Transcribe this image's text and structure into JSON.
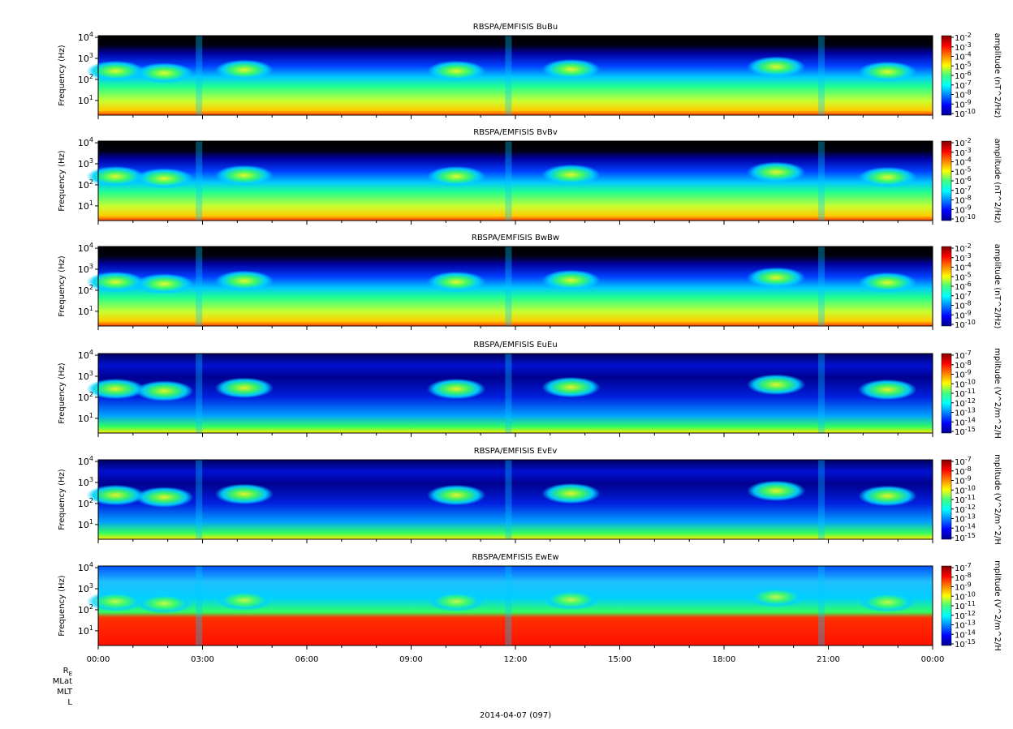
{
  "figure": {
    "date_label": "2014-04-07 (097)",
    "footer_rows": [
      "R_E",
      "MLat",
      "MLT",
      "L"
    ]
  },
  "chart_data": [
    {
      "type": "heatmap",
      "title": "RBSPA/EMFISIS  BuBu",
      "ylabel": "Frequency (Hz)",
      "yscale": "log",
      "ylim": [
        2,
        12000
      ],
      "yticks": [
        {
          "exp": "1",
          "value": 10
        },
        {
          "exp": "2",
          "value": 100
        },
        {
          "exp": "3",
          "value": 1000
        },
        {
          "exp": "4",
          "value": 10000
        }
      ],
      "xlim_hours": [
        0,
        24
      ],
      "colorbar": {
        "label": "amplitude (nT^2/Hz)",
        "exps": [
          "-2",
          "-3",
          "-4",
          "-5",
          "-6",
          "-7",
          "-8",
          "-9",
          "-10"
        ]
      },
      "xticks": []
    },
    {
      "type": "heatmap",
      "title": "RBSPA/EMFISIS  BvBv",
      "ylabel": "Frequency (Hz)",
      "yscale": "log",
      "ylim": [
        2,
        12000
      ],
      "yticks": [
        {
          "exp": "1",
          "value": 10
        },
        {
          "exp": "2",
          "value": 100
        },
        {
          "exp": "3",
          "value": 1000
        },
        {
          "exp": "4",
          "value": 10000
        }
      ],
      "xlim_hours": [
        0,
        24
      ],
      "colorbar": {
        "label": "amplitude (nT^2/Hz)",
        "exps": [
          "-2",
          "-3",
          "-4",
          "-5",
          "-6",
          "-7",
          "-8",
          "-9",
          "-10"
        ]
      },
      "xticks": []
    },
    {
      "type": "heatmap",
      "title": "RBSPA/EMFISIS  BwBw",
      "ylabel": "Frequency (Hz)",
      "yscale": "log",
      "ylim": [
        2,
        12000
      ],
      "yticks": [
        {
          "exp": "1",
          "value": 10
        },
        {
          "exp": "2",
          "value": 100
        },
        {
          "exp": "3",
          "value": 1000
        },
        {
          "exp": "4",
          "value": 10000
        }
      ],
      "xlim_hours": [
        0,
        24
      ],
      "colorbar": {
        "label": "amplitude (nT^2/Hz)",
        "exps": [
          "-2",
          "-3",
          "-4",
          "-5",
          "-6",
          "-7",
          "-8",
          "-9",
          "-10"
        ]
      },
      "xticks": []
    },
    {
      "type": "heatmap",
      "title": "RBSPA/EMFISIS  EuEu",
      "ylabel": "Frequency (Hz)",
      "yscale": "log",
      "ylim": [
        2,
        12000
      ],
      "yticks": [
        {
          "exp": "1",
          "value": 10
        },
        {
          "exp": "2",
          "value": 100
        },
        {
          "exp": "3",
          "value": 1000
        },
        {
          "exp": "4",
          "value": 10000
        }
      ],
      "xlim_hours": [
        0,
        24
      ],
      "colorbar": {
        "label": "mplitude (V^2/m^2/H",
        "exps": [
          "-7",
          "-8",
          "-9",
          "-10",
          "-11",
          "-12",
          "-13",
          "-14",
          "-15"
        ]
      },
      "xticks": []
    },
    {
      "type": "heatmap",
      "title": "RBSPA/EMFISIS  EvEv",
      "ylabel": "Frequency (Hz)",
      "yscale": "log",
      "ylim": [
        2,
        12000
      ],
      "yticks": [
        {
          "exp": "1",
          "value": 10
        },
        {
          "exp": "2",
          "value": 100
        },
        {
          "exp": "3",
          "value": 1000
        },
        {
          "exp": "4",
          "value": 10000
        }
      ],
      "xlim_hours": [
        0,
        24
      ],
      "colorbar": {
        "label": "mplitude (V^2/m^2/H",
        "exps": [
          "-7",
          "-8",
          "-9",
          "-10",
          "-11",
          "-12",
          "-13",
          "-14",
          "-15"
        ]
      },
      "xticks": []
    },
    {
      "type": "heatmap",
      "title": "RBSPA/EMFISIS  EwEw",
      "ylabel": "Frequency (Hz)",
      "yscale": "log",
      "ylim": [
        2,
        12000
      ],
      "yticks": [
        {
          "exp": "1",
          "value": 10
        },
        {
          "exp": "2",
          "value": 100
        },
        {
          "exp": "3",
          "value": 1000
        },
        {
          "exp": "4",
          "value": 10000
        }
      ],
      "xlim_hours": [
        0,
        24
      ],
      "colorbar": {
        "label": "mplitude (V^2/m^2/H",
        "exps": [
          "-7",
          "-8",
          "-9",
          "-10",
          "-11",
          "-12",
          "-13",
          "-14",
          "-15"
        ]
      },
      "xticks": [
        {
          "label": "00:00",
          "hour": 0
        },
        {
          "label": "03:00",
          "hour": 3
        },
        {
          "label": "06:00",
          "hour": 6
        },
        {
          "label": "09:00",
          "hour": 9
        },
        {
          "label": "12:00",
          "hour": 12
        },
        {
          "label": "15:00",
          "hour": 15
        },
        {
          "label": "18:00",
          "hour": 18
        },
        {
          "label": "21:00",
          "hour": 21
        },
        {
          "label": "00:00",
          "hour": 24
        }
      ]
    }
  ]
}
